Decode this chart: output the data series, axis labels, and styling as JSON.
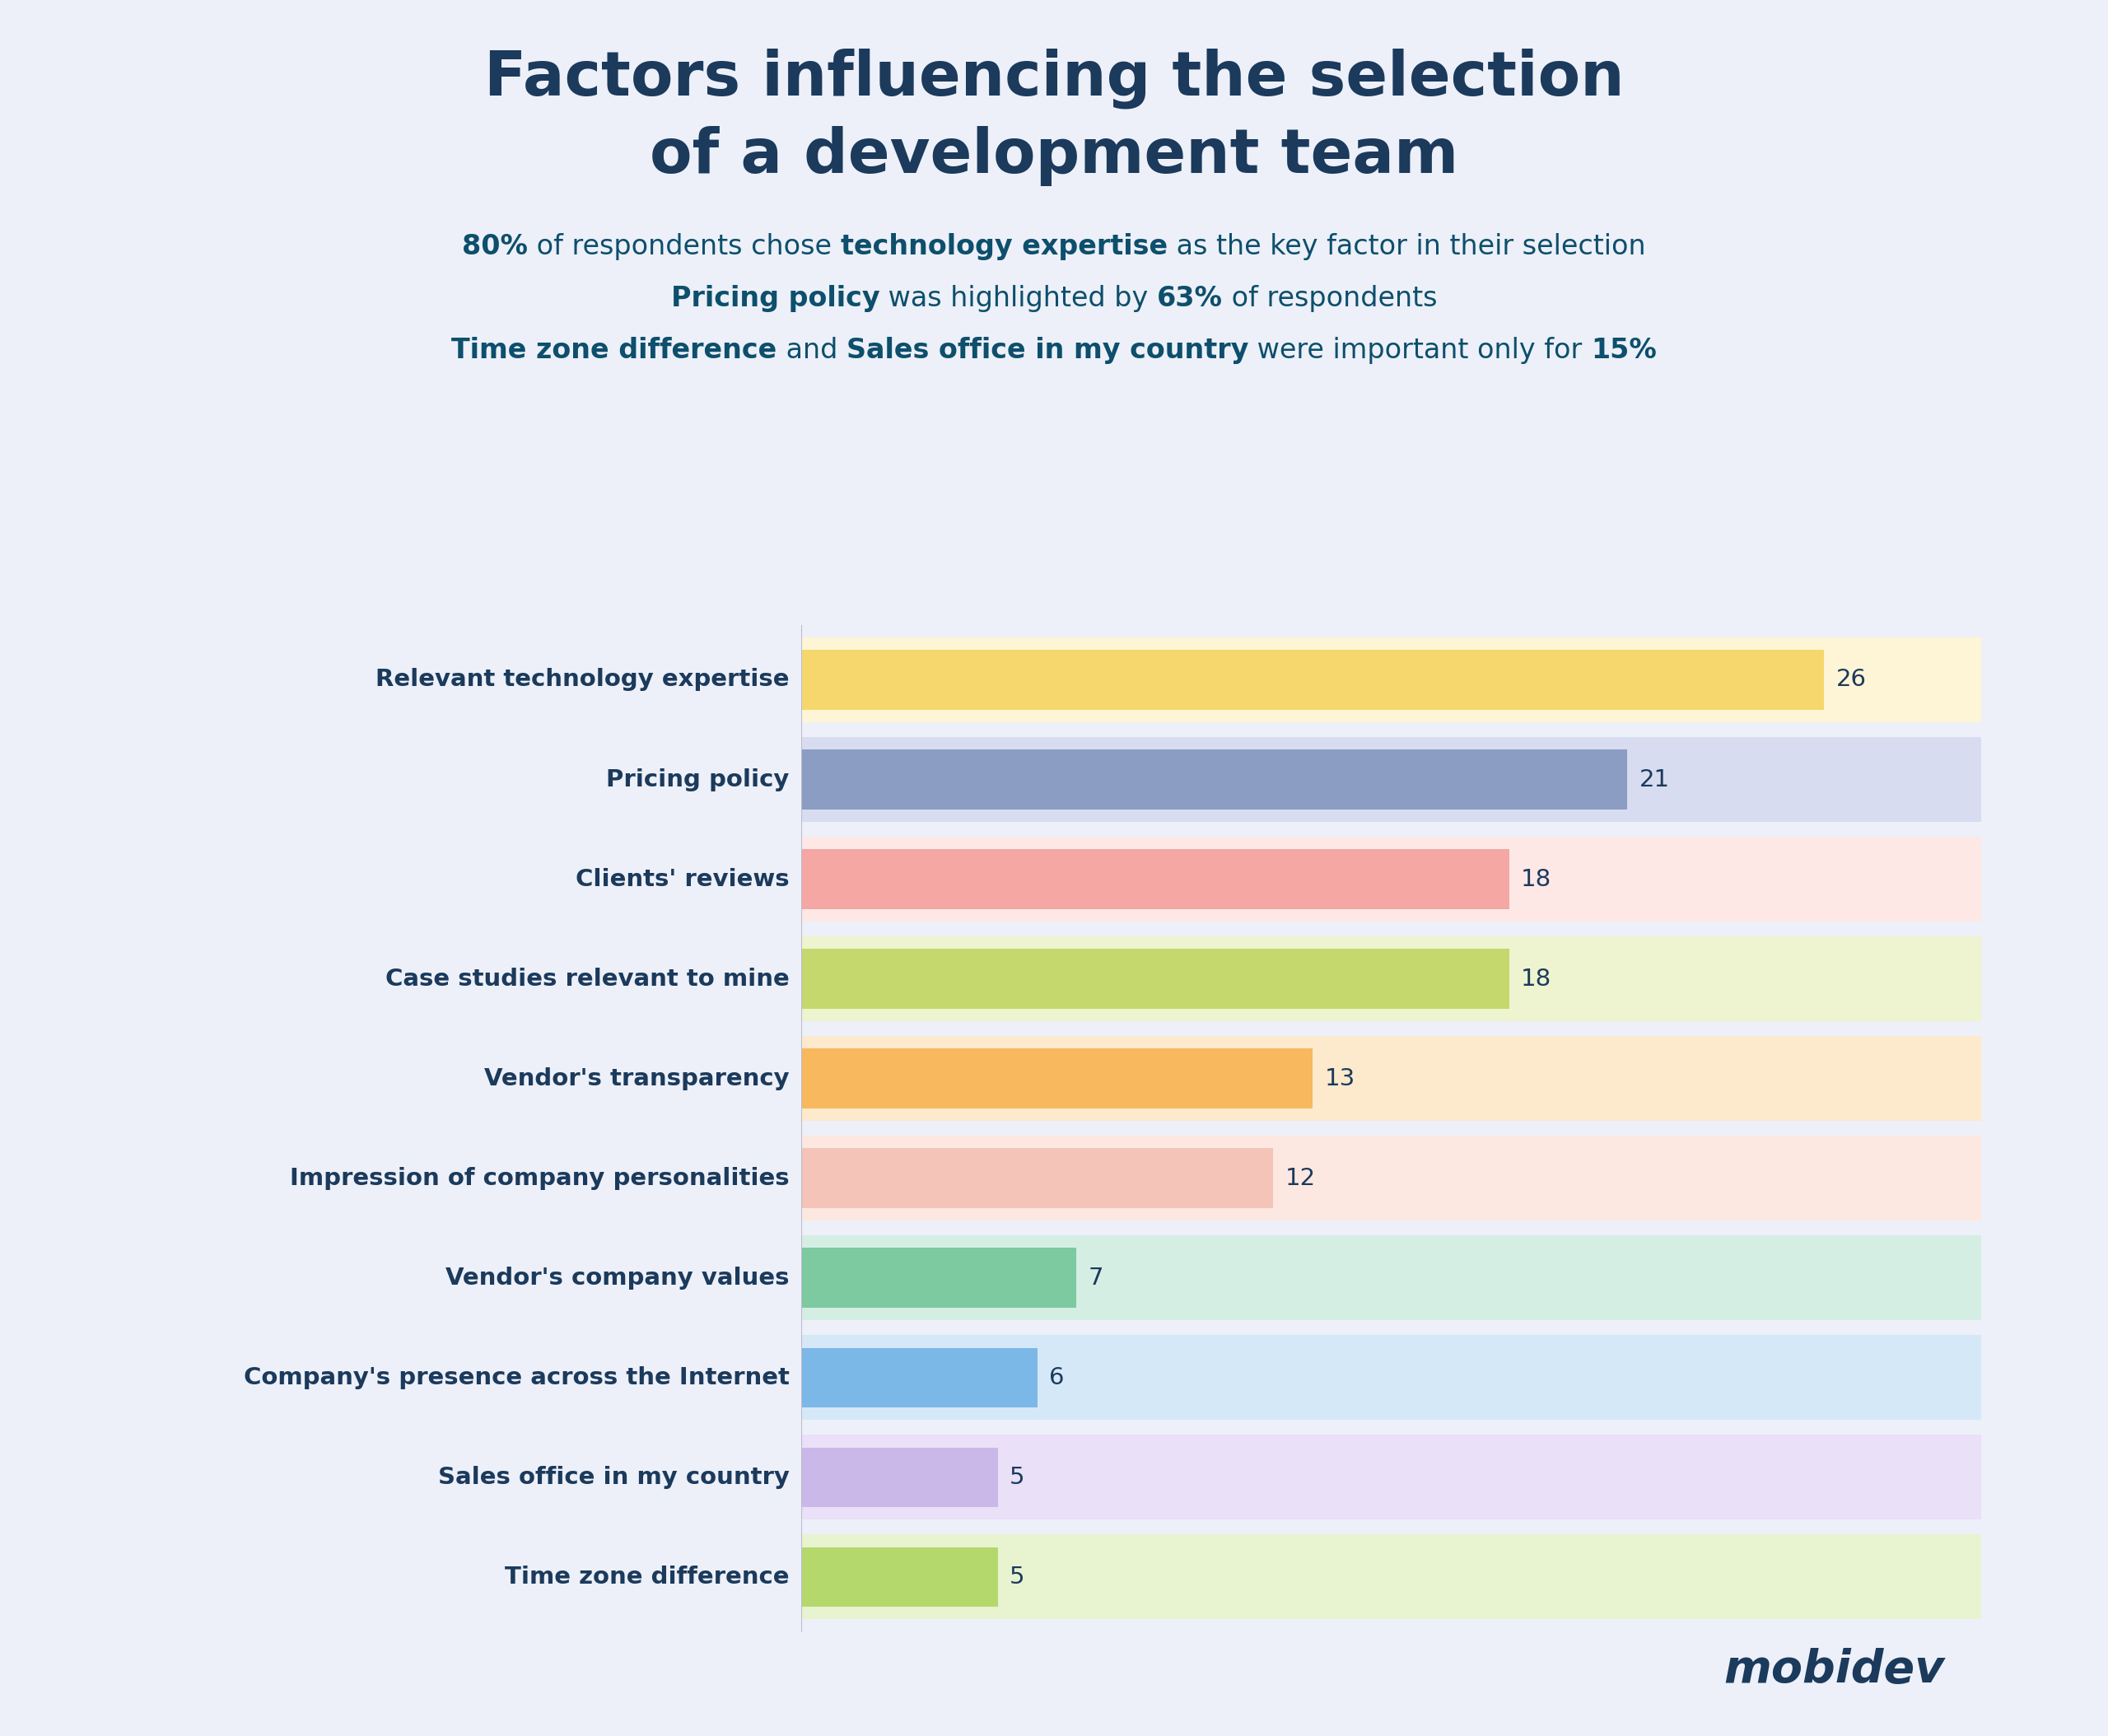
{
  "title_line1": "Factors influencing the selection",
  "title_line2": "of a development team",
  "subtitle_lines": [
    [
      {
        "text": "80%",
        "bold": true
      },
      {
        "text": " of respondents chose ",
        "bold": false
      },
      {
        "text": "technology expertise",
        "bold": true
      },
      {
        "text": " as the key factor in their selection",
        "bold": false
      }
    ],
    [
      {
        "text": "Pricing policy",
        "bold": true
      },
      {
        "text": " was highlighted by ",
        "bold": false
      },
      {
        "text": "63%",
        "bold": true
      },
      {
        "text": " of respondents",
        "bold": false
      }
    ],
    [
      {
        "text": "Time zone difference",
        "bold": true
      },
      {
        "text": " and ",
        "bold": false
      },
      {
        "text": "Sales office in my country",
        "bold": true
      },
      {
        "text": " were important only for ",
        "bold": false
      },
      {
        "text": "15%",
        "bold": true
      }
    ]
  ],
  "categories": [
    "Relevant technology expertise",
    "Pricing policy",
    "Clients' reviews",
    "Case studies relevant to mine",
    "Vendor's transparency",
    "Impression of company personalities",
    "Vendor's company values",
    "Company's presence across the Internet",
    "Sales office in my country",
    "Time zone difference"
  ],
  "values": [
    26,
    21,
    18,
    18,
    13,
    12,
    7,
    6,
    5,
    5
  ],
  "bar_colors": [
    "#F5D76E",
    "#8B9DC3",
    "#F4A7A3",
    "#C5D86D",
    "#F7B85E",
    "#F4C4B8",
    "#7DC9A0",
    "#7BB8E8",
    "#C9B8E8",
    "#B5D86D"
  ],
  "bg_colors": [
    "#FDF5D5",
    "#D8DCF0",
    "#FDE8E6",
    "#EEF3D0",
    "#FDE9CC",
    "#FCE8E0",
    "#D5EEE3",
    "#D5E8F8",
    "#EAE0F8",
    "#E8F3D0"
  ],
  "background_color": "#EDF0F8",
  "text_color": "#1B3A5C",
  "title_color": "#1B3A5C",
  "subtitle_color": "#0D4F6C",
  "xlim_max": 30,
  "watermark": "mobidev"
}
